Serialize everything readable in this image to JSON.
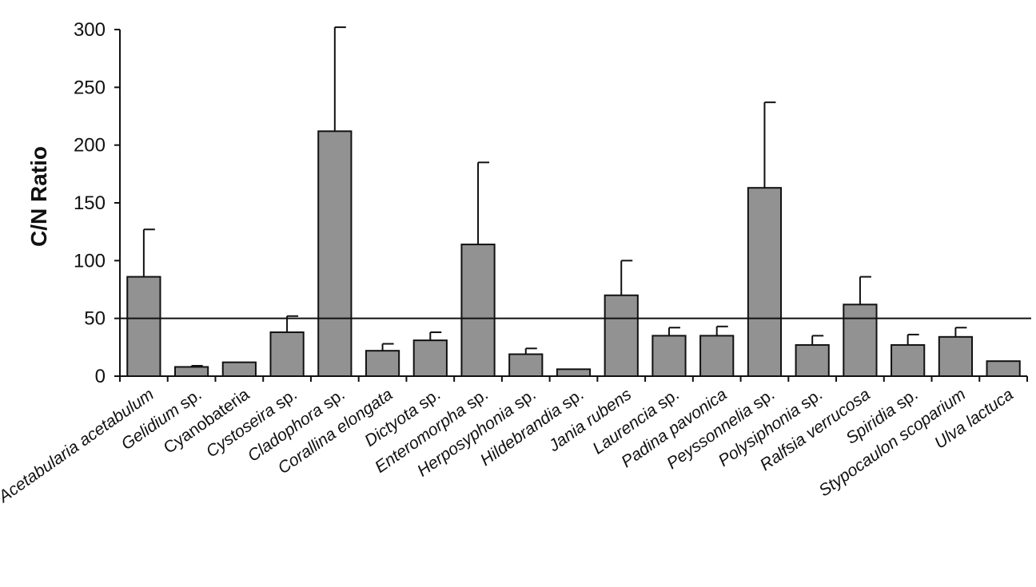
{
  "chart_data": {
    "type": "bar",
    "title": "",
    "xlabel": "",
    "ylabel": "C/N Ratio",
    "ylim": [
      0,
      300
    ],
    "yticks": [
      0,
      50,
      100,
      150,
      200,
      250,
      300
    ],
    "reference_line": 50,
    "categories": [
      {
        "parts": [
          {
            "t": "Acetabularia acetabulum",
            "i": true
          }
        ]
      },
      {
        "parts": [
          {
            "t": "Gelidium",
            "i": true
          },
          {
            "t": " sp.",
            "i": false
          }
        ]
      },
      {
        "parts": [
          {
            "t": "Cyanobateria",
            "i": false
          }
        ]
      },
      {
        "parts": [
          {
            "t": "Cystoseira",
            "i": true
          },
          {
            "t": " sp.",
            "i": false
          }
        ]
      },
      {
        "parts": [
          {
            "t": "Cladophora",
            "i": true
          },
          {
            "t": " sp.",
            "i": false
          }
        ]
      },
      {
        "parts": [
          {
            "t": "Corallina elongata",
            "i": true
          }
        ]
      },
      {
        "parts": [
          {
            "t": "Dictyota",
            "i": true
          },
          {
            "t": " sp.",
            "i": false
          }
        ]
      },
      {
        "parts": [
          {
            "t": "Enteromorpha",
            "i": true
          },
          {
            "t": " sp.",
            "i": false
          }
        ]
      },
      {
        "parts": [
          {
            "t": "Herposyphonia",
            "i": true
          },
          {
            "t": " sp.",
            "i": false
          }
        ]
      },
      {
        "parts": [
          {
            "t": "Hildebrandia",
            "i": true
          },
          {
            "t": " sp.",
            "i": false
          }
        ]
      },
      {
        "parts": [
          {
            "t": "Jania rubens",
            "i": true
          }
        ]
      },
      {
        "parts": [
          {
            "t": "Laurencia",
            "i": true
          },
          {
            "t": " sp.",
            "i": false
          }
        ]
      },
      {
        "parts": [
          {
            "t": "Padina pavonica",
            "i": true
          }
        ]
      },
      {
        "parts": [
          {
            "t": "Peyssonnelia",
            "i": true
          },
          {
            "t": " sp.",
            "i": false
          }
        ]
      },
      {
        "parts": [
          {
            "t": "Polysiphonia",
            "i": true
          },
          {
            "t": " sp.",
            "i": false
          }
        ]
      },
      {
        "parts": [
          {
            "t": "Ralfsia verrucosa",
            "i": true
          }
        ]
      },
      {
        "parts": [
          {
            "t": "Spiridia",
            "i": true
          },
          {
            "t": " sp.",
            "i": false
          }
        ]
      },
      {
        "parts": [
          {
            "t": "Stypocaulon scoparium",
            "i": true
          }
        ]
      },
      {
        "parts": [
          {
            "t": "Ulva lactuca",
            "i": true
          }
        ]
      }
    ],
    "values": [
      86,
      8,
      12,
      38,
      212,
      22,
      31,
      114,
      19,
      6,
      70,
      35,
      35,
      163,
      27,
      62,
      27,
      34,
      13
    ],
    "errors": [
      41,
      1,
      0,
      14,
      90,
      6,
      7,
      71,
      5,
      0,
      30,
      7,
      8,
      74,
      8,
      24,
      9,
      8,
      0
    ]
  }
}
